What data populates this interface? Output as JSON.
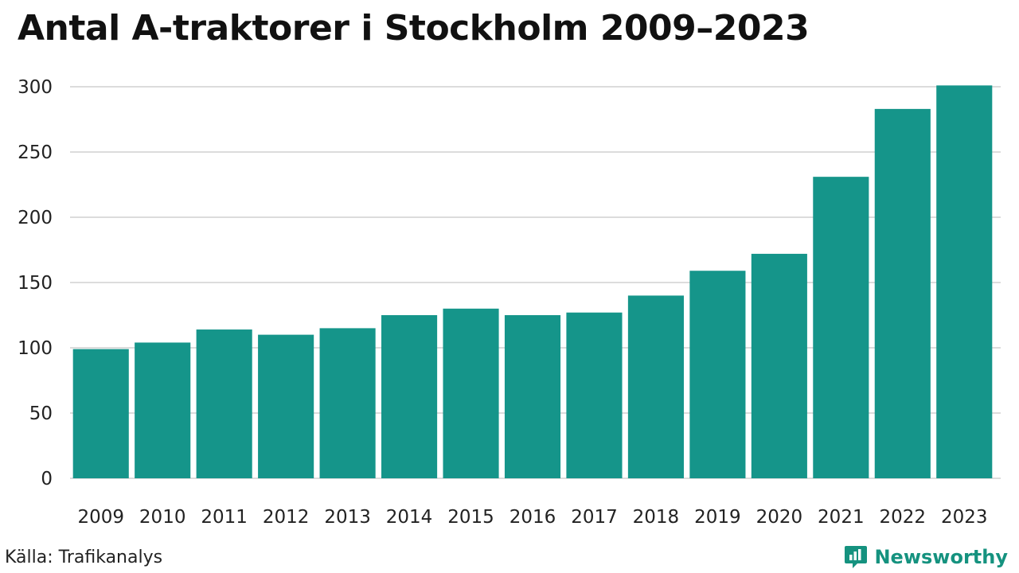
{
  "colors": {
    "bar": "#15958a",
    "grid": "#dcdcdc",
    "brand": "#15927f"
  },
  "footer": {
    "source": "Källa: Trafikanalys",
    "brand_name": "Newsworthy",
    "brand_icon": "newsworthy-logo-icon"
  },
  "chart_data": {
    "type": "bar",
    "title": "Antal A-traktorer i Stockholm 2009–2023",
    "xlabel": "",
    "ylabel": "",
    "categories": [
      "2009",
      "2010",
      "2011",
      "2012",
      "2013",
      "2014",
      "2015",
      "2016",
      "2017",
      "2018",
      "2019",
      "2020",
      "2021",
      "2022",
      "2023"
    ],
    "values": [
      99,
      104,
      114,
      110,
      115,
      125,
      130,
      125,
      127,
      140,
      159,
      172,
      231,
      283,
      301
    ],
    "ylim": [
      0,
      300
    ],
    "yticks": [
      0,
      50,
      100,
      150,
      200,
      250,
      300
    ],
    "grid": true,
    "legend": "none"
  }
}
